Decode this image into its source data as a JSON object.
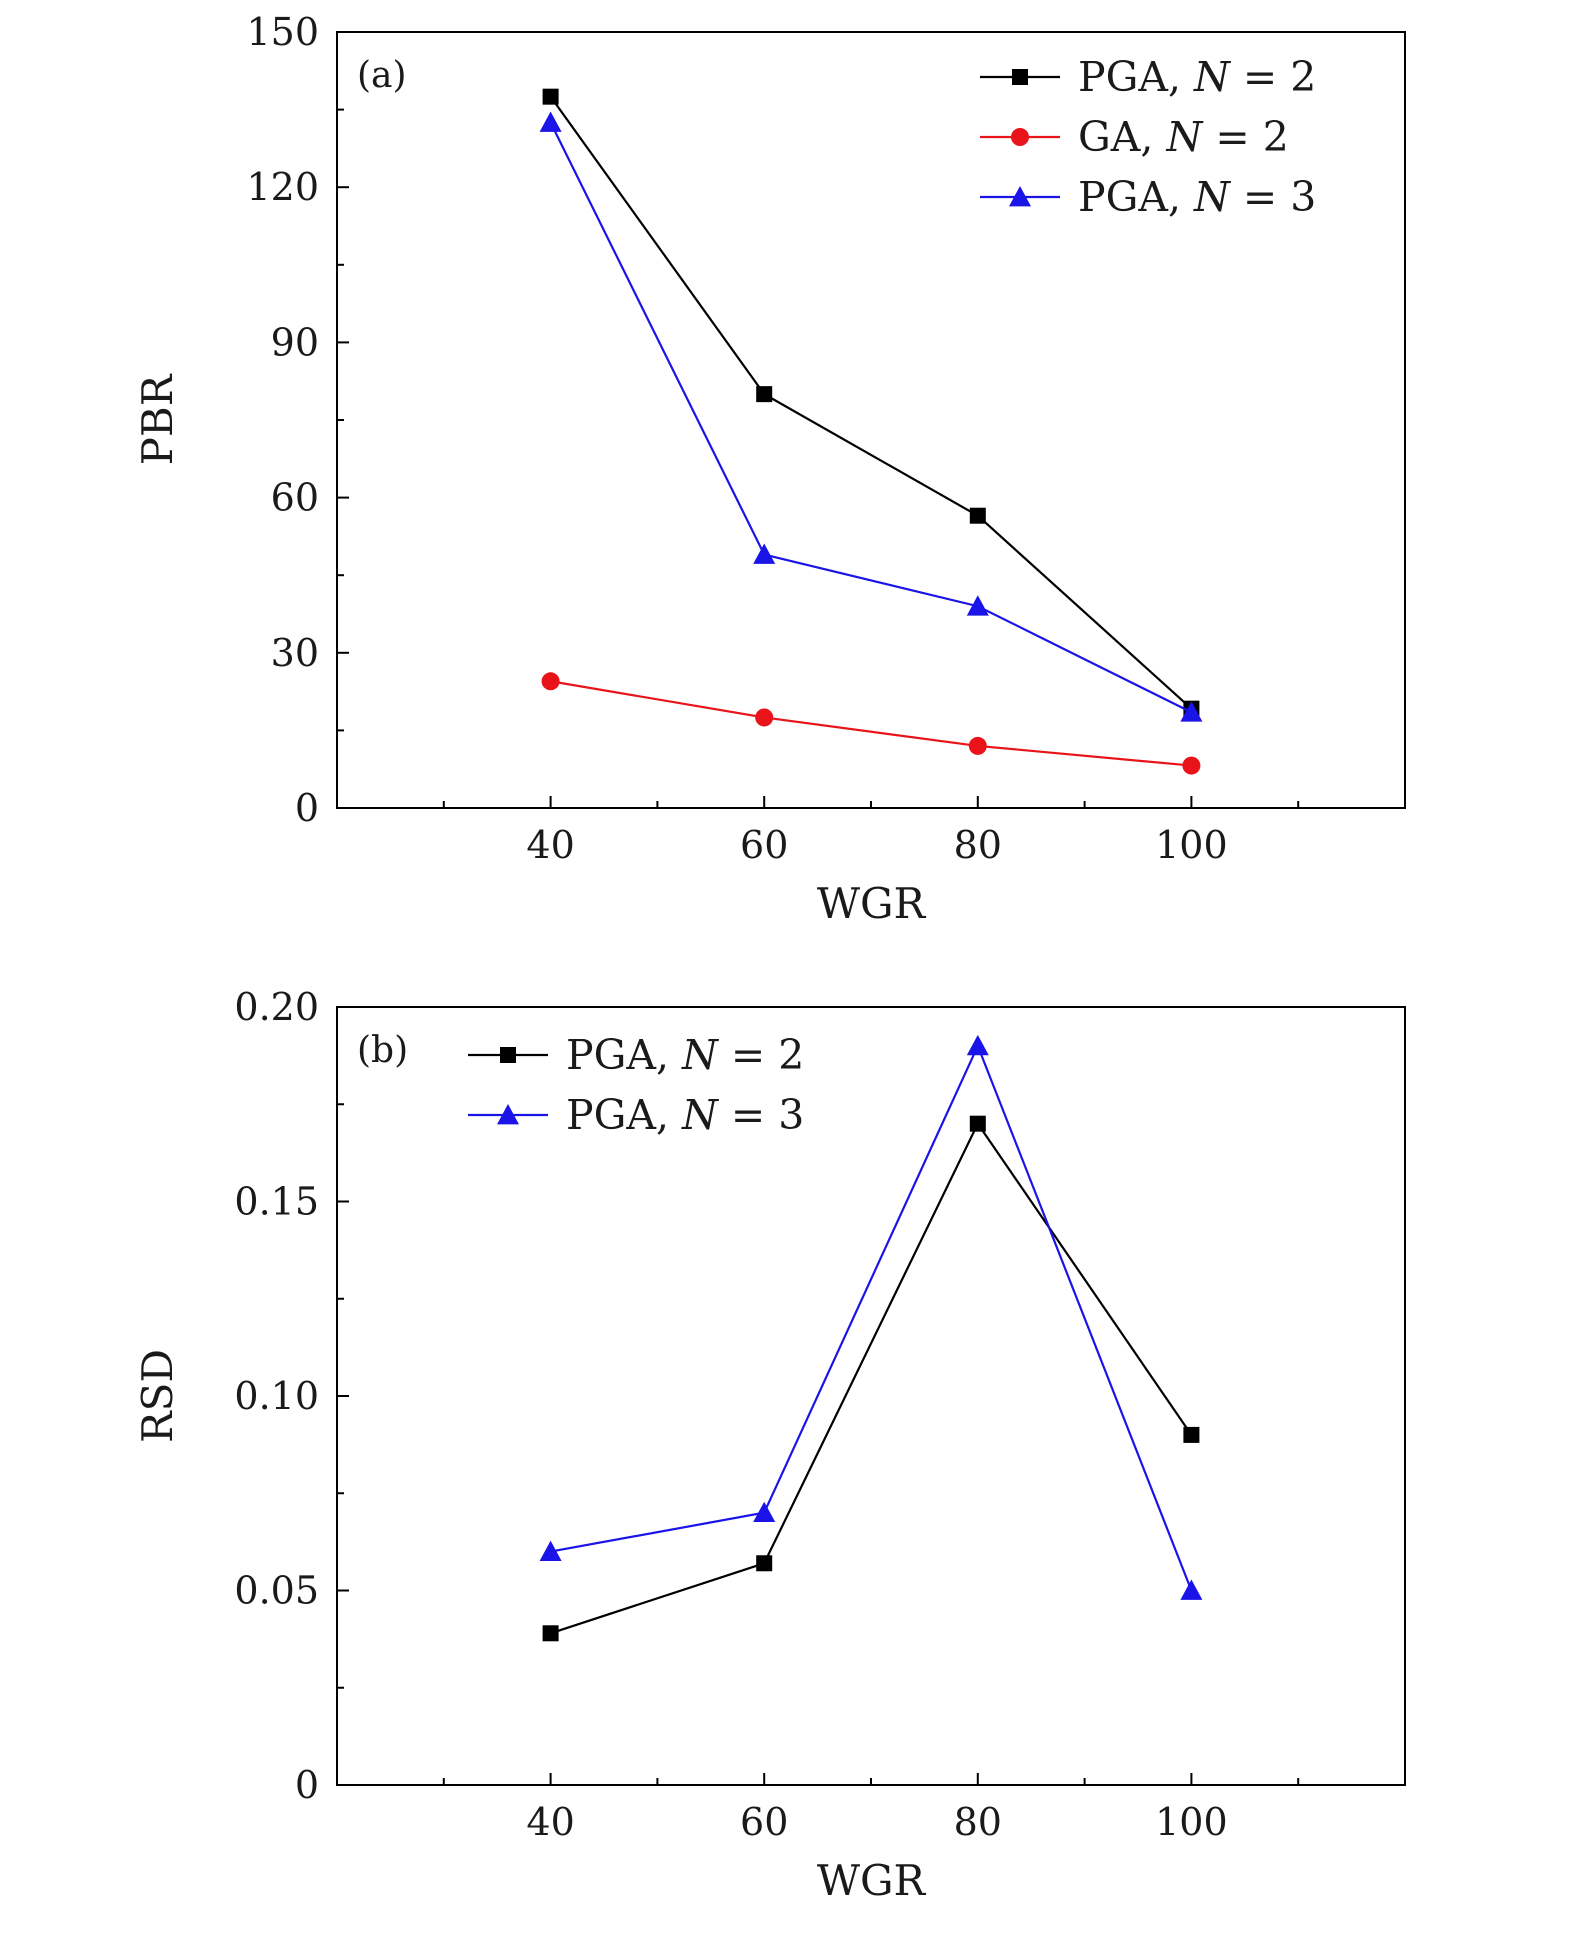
{
  "colors": {
    "black": "#000000",
    "red": "#e8141a",
    "blue": "#1a14e8"
  },
  "chart_data": [
    {
      "type": "line",
      "panel_label": "(a)",
      "xlabel": "WGR",
      "ylabel": "PBR",
      "xlim": [
        20,
        120
      ],
      "ylim": [
        0,
        150
      ],
      "xticks": [
        40,
        60,
        80,
        100
      ],
      "xtick_labels": [
        "40",
        "60",
        "80",
        "100"
      ],
      "yticks": [
        0,
        30,
        60,
        90,
        120,
        150
      ],
      "ytick_labels": [
        "0",
        "30",
        "60",
        "90",
        "120",
        "150"
      ],
      "legend_position": "top-right",
      "x": [
        40,
        60,
        80,
        100
      ],
      "series": [
        {
          "name": "PGA, N = 2",
          "legend": {
            "pre": "PGA, ",
            "var": "N",
            "post": " = 2"
          },
          "color": "#000000",
          "marker": "square",
          "values": [
            137.5,
            80,
            56.5,
            19.2
          ]
        },
        {
          "name": "GA, N = 2",
          "legend": {
            "pre": "GA, ",
            "var": "N",
            "post": " = 2"
          },
          "color": "#e8141a",
          "marker": "circle",
          "values": [
            24.5,
            17.5,
            12,
            8.2
          ]
        },
        {
          "name": "PGA, N = 3",
          "legend": {
            "pre": "PGA, ",
            "var": "N",
            "post": " = 3"
          },
          "color": "#1a14e8",
          "marker": "triangle",
          "values": [
            132.5,
            49,
            39,
            18.5
          ]
        }
      ]
    },
    {
      "type": "line",
      "panel_label": "(b)",
      "xlabel": "WGR",
      "ylabel": "RSD",
      "xlim": [
        20,
        120
      ],
      "ylim": [
        0,
        0.2
      ],
      "xticks": [
        40,
        60,
        80,
        100
      ],
      "xtick_labels": [
        "40",
        "60",
        "80",
        "100"
      ],
      "yticks": [
        0,
        0.05,
        0.1,
        0.15,
        0.2
      ],
      "ytick_labels": [
        "0",
        "0.05",
        "0.10",
        "0.15",
        "0.20"
      ],
      "legend_position": "top-left",
      "x": [
        40,
        60,
        80,
        100
      ],
      "series": [
        {
          "name": "PGA, N = 2",
          "legend": {
            "pre": "PGA, ",
            "var": "N",
            "post": " = 2"
          },
          "color": "#000000",
          "marker": "square",
          "values": [
            0.039,
            0.057,
            0.17,
            0.09
          ]
        },
        {
          "name": "PGA, N = 3",
          "legend": {
            "pre": "PGA, ",
            "var": "N",
            "post": " = 3"
          },
          "color": "#1a14e8",
          "marker": "triangle",
          "values": [
            0.06,
            0.07,
            0.19,
            0.05
          ]
        }
      ]
    }
  ]
}
